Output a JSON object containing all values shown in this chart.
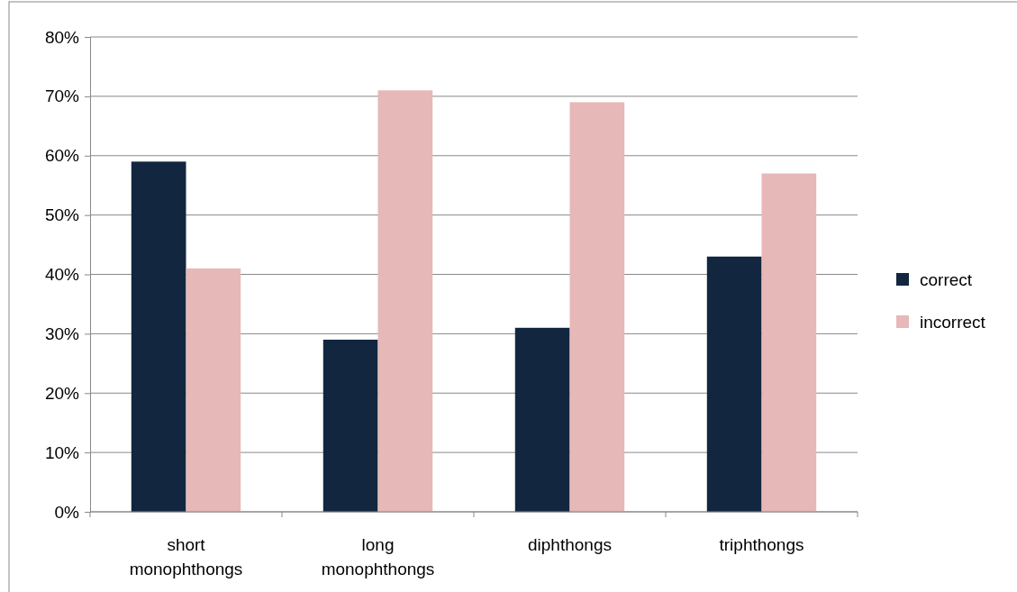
{
  "chart_data": {
    "type": "bar",
    "categories": [
      "short monophthongs",
      "long monophthongs",
      "diphthongs",
      "triphthongs"
    ],
    "series": [
      {
        "name": "correct",
        "color": "#12263f",
        "values": [
          59,
          29,
          31,
          43
        ]
      },
      {
        "name": "incorrect",
        "color": "#e6b8b7",
        "values": [
          41,
          71,
          69,
          57
        ]
      }
    ],
    "ylim": [
      0,
      80
    ],
    "yticks": [
      {
        "value": 0,
        "label": "0%"
      },
      {
        "value": 10,
        "label": "10%"
      },
      {
        "value": 20,
        "label": "20%"
      },
      {
        "value": 30,
        "label": "30%"
      },
      {
        "value": 40,
        "label": "40%"
      },
      {
        "value": 50,
        "label": "50%"
      },
      {
        "value": 60,
        "label": "60%"
      },
      {
        "value": 70,
        "label": "70%"
      },
      {
        "value": 80,
        "label": "80%"
      }
    ],
    "grid": "y",
    "legend": "right"
  }
}
